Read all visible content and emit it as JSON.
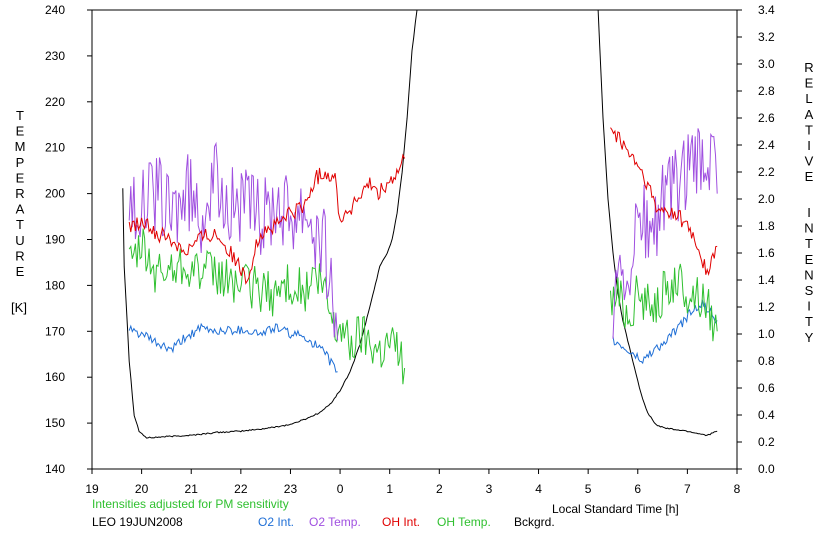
{
  "chart_data": {
    "type": "line",
    "left_axis": {
      "label_letters": [
        "T",
        "E",
        "M",
        "P",
        "E",
        "R",
        "A",
        "T",
        "U",
        "R",
        "E"
      ],
      "unit": "[K]",
      "range": [
        140,
        240
      ],
      "ticks": [
        "140",
        "150",
        "160",
        "170",
        "180",
        "190",
        "200",
        "210",
        "220",
        "230",
        "240"
      ]
    },
    "right_axis": {
      "label_letters_1": [
        "R",
        "E",
        "L",
        "A",
        "T",
        "I",
        "V",
        "E"
      ],
      "label_letters_2": [
        "I",
        "N",
        "T",
        "E",
        "N",
        "S",
        "I",
        "T",
        "Y"
      ],
      "range": [
        0.0,
        3.4
      ],
      "ticks": [
        "0.0",
        "0.2",
        "0.4",
        "0.6",
        "0.8",
        "1.0",
        "1.2",
        "1.4",
        "1.6",
        "1.8",
        "2.0",
        "2.2",
        "2.4",
        "2.6",
        "2.8",
        "3.0",
        "3.2",
        "3.4"
      ]
    },
    "x_axis": {
      "label": "Local Standard Time [h]",
      "range": [
        19,
        32
      ],
      "ticks": [
        "19",
        "20",
        "21",
        "22",
        "23",
        "0",
        "1",
        "2",
        "3",
        "4",
        "5",
        "6",
        "7",
        "8"
      ]
    },
    "note": "Intensities adjusted for PM sensitivity",
    "station": "LEO 19JUN2008",
    "legend": [
      "O2 Int.",
      "O2 Temp.",
      "OH Int.",
      "OH Temp.",
      "Bckgrd."
    ],
    "colors": {
      "O2 Int.": "#1f6fd6",
      "O2 Temp.": "#a050e0",
      "OH Int.": "#e00000",
      "OH Temp.": "#30c030",
      "Bckgrd.": "#000000",
      "note": "#30c030"
    },
    "series": [
      {
        "name": "O2 Int.",
        "axis": "right",
        "x": [
          19.75,
          20.0,
          20.3,
          20.6,
          20.9,
          21.2,
          21.5,
          21.8,
          22.1,
          22.4,
          22.7,
          23.0,
          23.3,
          23.5,
          23.7,
          23.85,
          23.95
        ],
        "y": [
          1.03,
          1.0,
          0.93,
          0.88,
          0.98,
          1.04,
          1.02,
          1.03,
          1.03,
          1.0,
          1.05,
          1.0,
          0.98,
          0.92,
          0.85,
          0.77,
          0.72
        ]
      },
      {
        "name": "O2 Temp.",
        "axis": "left",
        "x": [
          19.75,
          20.0,
          20.3,
          20.6,
          20.9,
          21.2,
          21.5,
          21.8,
          22.1,
          22.4,
          22.7,
          23.0,
          23.3,
          23.5,
          23.7,
          23.85,
          23.95
        ],
        "y": [
          200,
          197,
          200,
          195,
          200,
          196,
          202,
          198,
          197,
          194,
          199,
          196,
          198,
          192,
          188,
          178,
          168
        ]
      },
      {
        "name": "OH Int.",
        "axis": "right",
        "x": [
          19.75,
          20.0,
          20.3,
          20.6,
          20.9,
          21.2,
          21.5,
          21.8,
          22.1,
          22.4,
          22.7,
          23.0,
          23.3,
          23.5,
          23.7,
          23.9,
          24.0,
          24.2,
          24.4,
          24.6,
          24.8,
          25.0,
          25.2,
          25.3
        ],
        "y": [
          1.8,
          1.82,
          1.75,
          1.7,
          1.62,
          1.72,
          1.75,
          1.6,
          1.4,
          1.75,
          1.8,
          1.9,
          1.95,
          2.15,
          2.2,
          2.15,
          1.85,
          1.92,
          2.02,
          2.1,
          2.05,
          2.12,
          2.2,
          2.3
        ]
      },
      {
        "name": "OH Temp.",
        "axis": "left",
        "x": [
          19.75,
          20.0,
          20.3,
          20.6,
          20.9,
          21.2,
          21.5,
          21.8,
          22.1,
          22.4,
          22.7,
          23.0,
          23.3,
          23.5,
          23.7,
          23.9,
          24.0,
          24.2,
          24.4,
          24.6,
          24.8,
          25.0,
          25.2,
          25.3
        ],
        "y": [
          183,
          188,
          182,
          184,
          185,
          183,
          182,
          181,
          180,
          179,
          178,
          181,
          178,
          182,
          178,
          170,
          172,
          167,
          170,
          168,
          166,
          168,
          166,
          162
        ]
      },
      {
        "name": "Bckgrd.",
        "axis": "right",
        "x": [
          19.62,
          19.65,
          19.75,
          19.85,
          19.95,
          20.1,
          20.5,
          21.0,
          21.5,
          22.0,
          22.5,
          23.0,
          23.3,
          23.6,
          23.8,
          24.0,
          24.2,
          24.4,
          24.6,
          24.8,
          24.95,
          25.05,
          25.15,
          25.25,
          25.35,
          25.45,
          25.55
        ],
        "y": [
          2.08,
          1.5,
          0.8,
          0.4,
          0.28,
          0.23,
          0.24,
          0.25,
          0.27,
          0.28,
          0.3,
          0.33,
          0.37,
          0.42,
          0.48,
          0.58,
          0.72,
          0.92,
          1.2,
          1.5,
          1.6,
          1.7,
          1.9,
          2.2,
          2.6,
          3.1,
          3.4
        ]
      },
      {
        "name": "O2 Int.",
        "axis": "right",
        "x": [
          29.5,
          29.7,
          29.9,
          30.1,
          30.3,
          30.5,
          30.7,
          30.9,
          31.1,
          31.3,
          31.5,
          31.6
        ],
        "y": [
          0.95,
          0.9,
          0.85,
          0.8,
          0.88,
          0.92,
          1.0,
          1.08,
          1.18,
          1.22,
          1.15,
          1.1
        ]
      },
      {
        "name": "O2 Temp.",
        "axis": "left",
        "x": [
          29.5,
          29.7,
          29.9,
          30.1,
          30.3,
          30.5,
          30.7,
          30.9,
          31.1,
          31.3,
          31.5,
          31.6
        ],
        "y": [
          175,
          180,
          188,
          194,
          190,
          198,
          200,
          203,
          205,
          206,
          207,
          200
        ]
      },
      {
        "name": "OH Int.",
        "axis": "right",
        "x": [
          29.45,
          29.6,
          29.8,
          30.0,
          30.2,
          30.4,
          30.6,
          30.8,
          31.0,
          31.2,
          31.4,
          31.6
        ],
        "y": [
          2.55,
          2.45,
          2.35,
          2.25,
          2.1,
          1.9,
          1.92,
          1.88,
          1.8,
          1.65,
          1.45,
          1.65
        ]
      },
      {
        "name": "OH Temp.",
        "axis": "left",
        "x": [
          29.45,
          29.6,
          29.8,
          30.0,
          30.2,
          30.4,
          30.6,
          30.8,
          31.0,
          31.2,
          31.4,
          31.6
        ],
        "y": [
          176,
          178,
          174,
          178,
          176,
          177,
          179,
          181,
          178,
          178,
          176,
          170
        ]
      },
      {
        "name": "Bckgrd.",
        "axis": "right",
        "x": [
          29.2,
          29.3,
          29.4,
          29.5,
          29.6,
          29.7,
          29.8,
          29.9,
          30.0,
          30.1,
          30.2,
          30.3,
          30.4,
          30.6,
          31.0,
          31.4,
          31.6
        ],
        "y": [
          3.4,
          2.6,
          2.0,
          1.6,
          1.3,
          1.1,
          0.95,
          0.8,
          0.65,
          0.52,
          0.42,
          0.36,
          0.32,
          0.3,
          0.28,
          0.25,
          0.28
        ]
      }
    ]
  }
}
